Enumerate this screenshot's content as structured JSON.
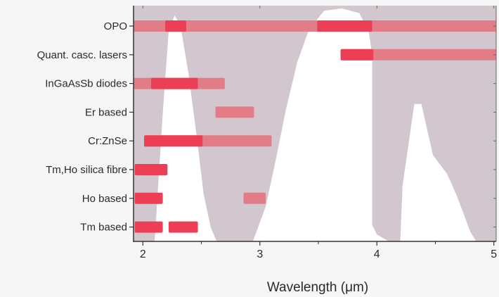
{
  "chart_data": {
    "type": "bar",
    "subtype": "horizontal-range",
    "xlabel": "Wavelength (μm)",
    "ylabel": "",
    "xlim": [
      1.92,
      5.02
    ],
    "x_ticks": [
      "2",
      "3",
      "4",
      "5"
    ],
    "grid": false,
    "categories": [
      "OPO",
      "Quant. casc. lasers",
      "InGaAsSb diodes",
      "Er based",
      "Cr:ZnSe",
      "Tm,Ho silica fibre",
      "Ho based",
      "Tm based"
    ],
    "series": [
      {
        "color": "#ec3f56",
        "ranges": [
          {
            "category": "OPO",
            "x": [
              2.19,
              2.37
            ]
          },
          {
            "category": "OPO",
            "x": [
              3.49,
              3.96
            ]
          },
          {
            "category": "Quant. casc. lasers",
            "x": [
              3.69,
              3.97
            ]
          },
          {
            "category": "InGaAsSb diodes",
            "x": [
              2.07,
              2.47
            ]
          },
          {
            "category": "Cr:ZnSe",
            "x": [
              2.01,
              2.51
            ]
          },
          {
            "category": "Tm,Ho silica fibre",
            "x": [
              1.93,
              2.21
            ]
          },
          {
            "category": "Ho based",
            "x": [
              1.93,
              2.17
            ]
          },
          {
            "category": "Tm based",
            "x": [
              1.93,
              2.17
            ]
          },
          {
            "category": "Tm based",
            "x": [
              2.22,
              2.47
            ]
          }
        ]
      },
      {
        "color": "#e27d87",
        "ranges": [
          {
            "category": "OPO",
            "x": [
              1.92,
              5.02
            ]
          },
          {
            "category": "Quant. casc. lasers",
            "x": [
              3.69,
              5.02
            ]
          },
          {
            "category": "InGaAsSb diodes",
            "x": [
              1.92,
              2.7
            ]
          },
          {
            "category": "Er based",
            "x": [
              2.62,
              2.95
            ]
          },
          {
            "category": "Cr:ZnSe",
            "x": [
              2.01,
              3.1
            ]
          },
          {
            "category": "Ho based",
            "x": [
              2.86,
              3.05
            ]
          }
        ]
      }
    ],
    "background_band": {
      "color": "#d2c7cf",
      "boundary": [
        [
          1.92,
          0
        ],
        [
          2.1,
          0
        ],
        [
          2.17,
          0.55
        ],
        [
          2.22,
          0.9
        ],
        [
          2.27,
          0.97
        ],
        [
          2.32,
          0.93
        ],
        [
          2.39,
          0.72
        ],
        [
          2.46,
          0.45
        ],
        [
          2.52,
          0.2
        ],
        [
          2.58,
          0.06
        ],
        [
          2.63,
          0
        ],
        [
          2.94,
          0
        ],
        [
          3.05,
          0.15
        ],
        [
          3.14,
          0.36
        ],
        [
          3.22,
          0.56
        ],
        [
          3.32,
          0.77
        ],
        [
          3.42,
          0.91
        ],
        [
          3.55,
          0.99
        ],
        [
          3.7,
          1.0
        ],
        [
          3.85,
          0.98
        ],
        [
          3.93,
          0.9
        ],
        [
          3.96,
          0.8
        ],
        [
          3.96,
          0.07
        ],
        [
          4.0,
          0.03
        ],
        [
          4.1,
          0
        ],
        [
          4.2,
          0
        ],
        [
          4.22,
          0.24
        ],
        [
          4.32,
          0.59
        ],
        [
          4.38,
          0.59
        ],
        [
          4.48,
          0.37
        ],
        [
          4.6,
          0.29
        ],
        [
          4.68,
          0.2
        ],
        [
          4.8,
          0.04
        ],
        [
          4.85,
          0
        ],
        [
          5.02,
          0
        ]
      ]
    }
  }
}
